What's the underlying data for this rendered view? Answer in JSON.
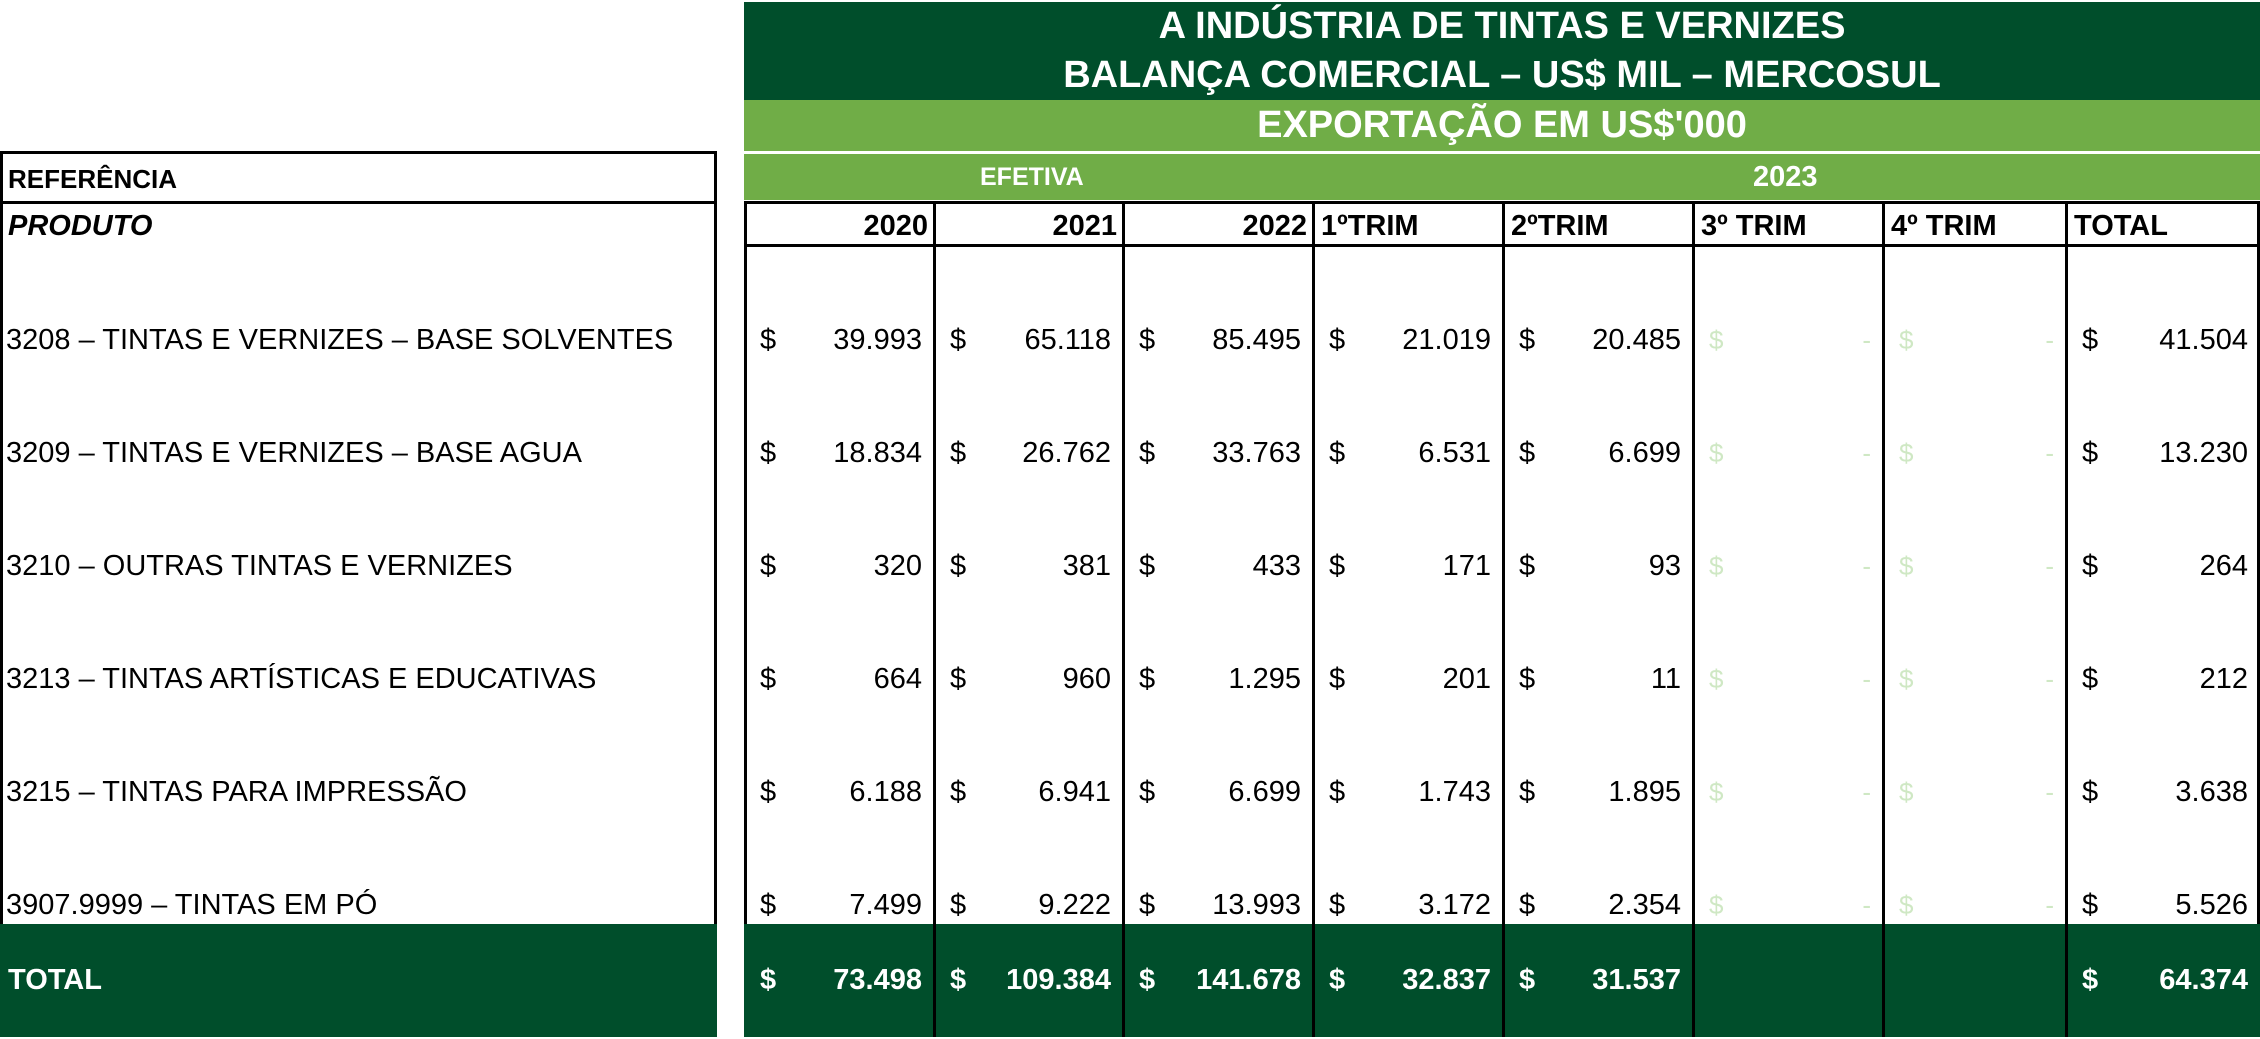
{
  "header": {
    "title_line1": "A INDÚSTRIA DE TINTAS E VERNIZES",
    "title_line2": "BALANÇA COMERCIAL – US$ MIL – MERCOSUL",
    "export_title": "EXPORTAÇÃO EM US$'000",
    "efetiva_label": "EFETIVA",
    "year_label": "2023"
  },
  "left": {
    "referencia_label": "REFERÊNCIA",
    "produto_label": "PRODUTO",
    "total_label": "TOTAL"
  },
  "columns": [
    "2020",
    "2021",
    "2022",
    "1ºTRIM",
    "2ºTRIM",
    "3º TRIM",
    "4º TRIM",
    "TOTAL"
  ],
  "currency": "$",
  "rows": [
    {
      "product": "3208 – TINTAS E VERNIZES – BASE SOLVENTES",
      "values": [
        "39.993",
        "65.118",
        "85.495",
        "21.019",
        "20.485",
        "-",
        "-",
        "41.504"
      ]
    },
    {
      "product": "3209 – TINTAS E VERNIZES – BASE AGUA",
      "values": [
        "18.834",
        "26.762",
        "33.763",
        "6.531",
        "6.699",
        "-",
        "-",
        "13.230"
      ]
    },
    {
      "product": "3210 – OUTRAS TINTAS E VERNIZES",
      "values": [
        "320",
        "381",
        "433",
        "171",
        "93",
        "-",
        "-",
        "264"
      ]
    },
    {
      "product": "3213 – TINTAS ARTÍSTICAS E EDUCATIVAS",
      "values": [
        "664",
        "960",
        "1.295",
        "201",
        "11",
        "-",
        "-",
        "212"
      ]
    },
    {
      "product": "3215 – TINTAS PARA IMPRESSÃO",
      "values": [
        "6.188",
        "6.941",
        "6.699",
        "1.743",
        "1.895",
        "-",
        "-",
        "3.638"
      ]
    },
    {
      "product": "3907.9999 – TINTAS EM PÓ",
      "values": [
        "7.499",
        "9.222",
        "13.993",
        "3.172",
        "2.354",
        "-",
        "-",
        "5.526"
      ]
    }
  ],
  "totals": [
    "73.498",
    "109.384",
    "141.678",
    "32.837",
    "31.537",
    "",
    "",
    "64.374"
  ],
  "colors": {
    "dark_green": "#004e2b",
    "light_green": "#70ad47",
    "ghost_green": "#cfe8c4"
  }
}
